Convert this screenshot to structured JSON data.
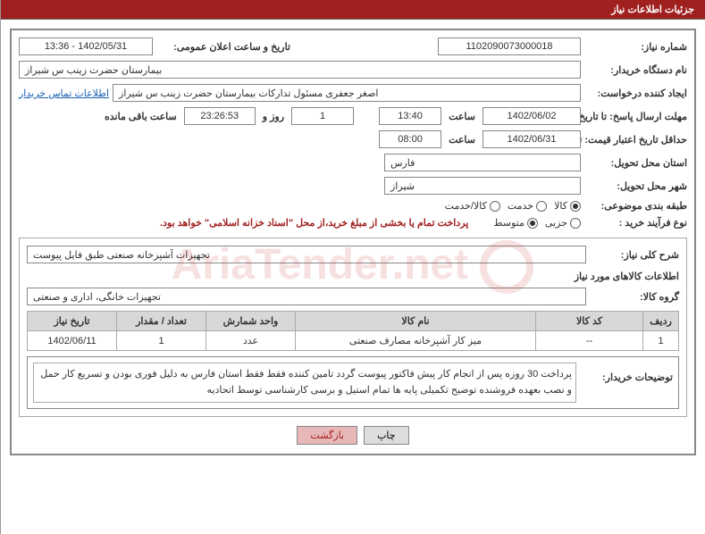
{
  "header": {
    "title": "جزئیات اطلاعات نیاز"
  },
  "watermark": "AriaTender.net",
  "fields": {
    "need_number_label": "شماره نیاز:",
    "need_number": "1102090073000018",
    "announce_label": "تاریخ و ساعت اعلان عمومی:",
    "announce_value": "1402/05/31 - 13:36",
    "buyer_org_label": "نام دستگاه خریدار:",
    "buyer_org": "بیمارستان حضرت زینب  س  شیراز",
    "requester_label": "ایجاد کننده درخواست:",
    "requester": "اصغر جعفری مسئول تدارکات بیمارستان حضرت زینب  س  شیراز",
    "contact_link": "اطلاعات تماس خریدار",
    "deadline_label": "مهلت ارسال پاسخ: تا تاریخ:",
    "deadline_date": "1402/06/02",
    "time_label": "ساعت",
    "deadline_time": "13:40",
    "remaining_days": "1",
    "days_and": "روز و",
    "remaining_time": "23:26:53",
    "remaining_suffix": "ساعت باقی مانده",
    "validity_label": "حداقل تاریخ اعتبار قیمت: تا تاریخ:",
    "validity_date": "1402/06/31",
    "validity_time": "08:00",
    "province_label": "استان محل تحویل:",
    "province": "فارس",
    "city_label": "شهر محل تحویل:",
    "city": "شیراز",
    "category_label": "طبقه بندی موضوعی:",
    "radios_category": [
      {
        "label": "کالا",
        "checked": true
      },
      {
        "label": "خدمت",
        "checked": false
      },
      {
        "label": "کالا/خدمت",
        "checked": false
      }
    ],
    "process_label": "نوع فرآیند خرید :",
    "radios_process": [
      {
        "label": "جزیی",
        "checked": false
      },
      {
        "label": "متوسط",
        "checked": true
      }
    ],
    "payment_note": "پرداخت تمام یا بخشی از مبلغ خرید،از محل \"اسناد خزانه اسلامی\" خواهد بود."
  },
  "summary": {
    "label": "شرح کلی نیاز:",
    "text": "تجهیزات آشپزخانه صنعتی طبق فایل پیوست"
  },
  "goods_section": {
    "title": "اطلاعات کالاهای مورد نیاز",
    "group_label": "گروه کالا:",
    "group_value": "تجهیزات خانگی، اداری و صنعتی"
  },
  "table": {
    "columns": [
      "ردیف",
      "کد کالا",
      "نام کالا",
      "واحد شمارش",
      "تعداد / مقدار",
      "تاریخ نیاز"
    ],
    "col_widths": [
      "40px",
      "120px",
      "auto",
      "100px",
      "100px",
      "100px"
    ],
    "rows": [
      [
        "1",
        "--",
        "میز کار آشپزخانه مصارف صنعتی",
        "عدد",
        "1",
        "1402/06/11"
      ]
    ]
  },
  "buyer_notes": {
    "label": "توضیحات خریدار:",
    "text": "پرداخت 30 روزه پس از انجام کار پیش فاکتور پیوست گردد تامین کننده فقط فقط استان فارس به دلیل فوری بودن و تسریع  کار حمل و نصب بعهده فروشنده  توضیح تکمیلی پایه ها تمام استیل و برسی  کارشناسی توسط اتحادیه"
  },
  "buttons": {
    "print": "چاپ",
    "back": "بازگشت"
  },
  "colors": {
    "header_bg": "#a02020",
    "border": "#888888",
    "link": "#1a5fb4",
    "th_bg": "#d8d8d8"
  }
}
